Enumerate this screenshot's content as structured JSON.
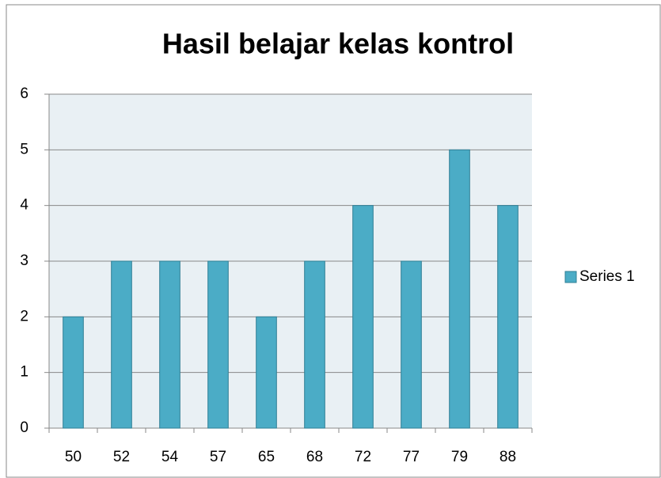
{
  "chart_data": {
    "type": "bar",
    "title": "Hasil belajar kelas kontrol",
    "categories": [
      "50",
      "52",
      "54",
      "57",
      "65",
      "68",
      "72",
      "77",
      "79",
      "88"
    ],
    "series": [
      {
        "name": "Series 1",
        "color": "#4bacc6",
        "values": [
          2,
          3,
          3,
          3,
          2,
          3,
          4,
          3,
          5,
          4
        ]
      }
    ],
    "ylim": [
      0,
      6
    ],
    "yticks": [
      0,
      1,
      2,
      3,
      4,
      5,
      6
    ],
    "grid": true,
    "legend": "right"
  }
}
